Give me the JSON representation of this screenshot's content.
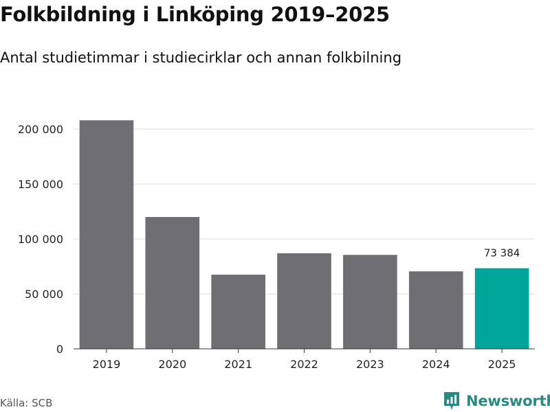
{
  "header": {
    "title": "Folkbildning i Linköping 2019–2025",
    "subtitle": "Antal studietimmar i studiecirklar och annan folkbilning"
  },
  "footer": {
    "source": "Källa: SCB",
    "brand": "Newsworthy"
  },
  "colors": {
    "bar": "#6e6e73",
    "highlight": "#00a59a",
    "grid": "#dddddd",
    "axis": "#333333",
    "brand": "#2a8a82"
  },
  "chart_data": {
    "type": "bar",
    "title": "Folkbildning i Linköping 2019–2025",
    "subtitle": "Antal studietimmar i studiecirklar och annan folkbilning",
    "xlabel": "",
    "ylabel": "",
    "categories": [
      "2019",
      "2020",
      "2021",
      "2022",
      "2023",
      "2024",
      "2025"
    ],
    "values": [
      208000,
      120000,
      67500,
      87000,
      85500,
      70500,
      73384
    ],
    "highlight_index": 6,
    "data_labels": [
      {
        "index": 6,
        "text": "73 384"
      }
    ],
    "ylim": [
      0,
      200000
    ],
    "yticks": [
      0,
      50000,
      100000,
      150000,
      200000
    ],
    "ytick_labels": [
      "0",
      "50 000",
      "100 000",
      "150 000",
      "200 000"
    ],
    "grid": true,
    "legend": "none"
  }
}
